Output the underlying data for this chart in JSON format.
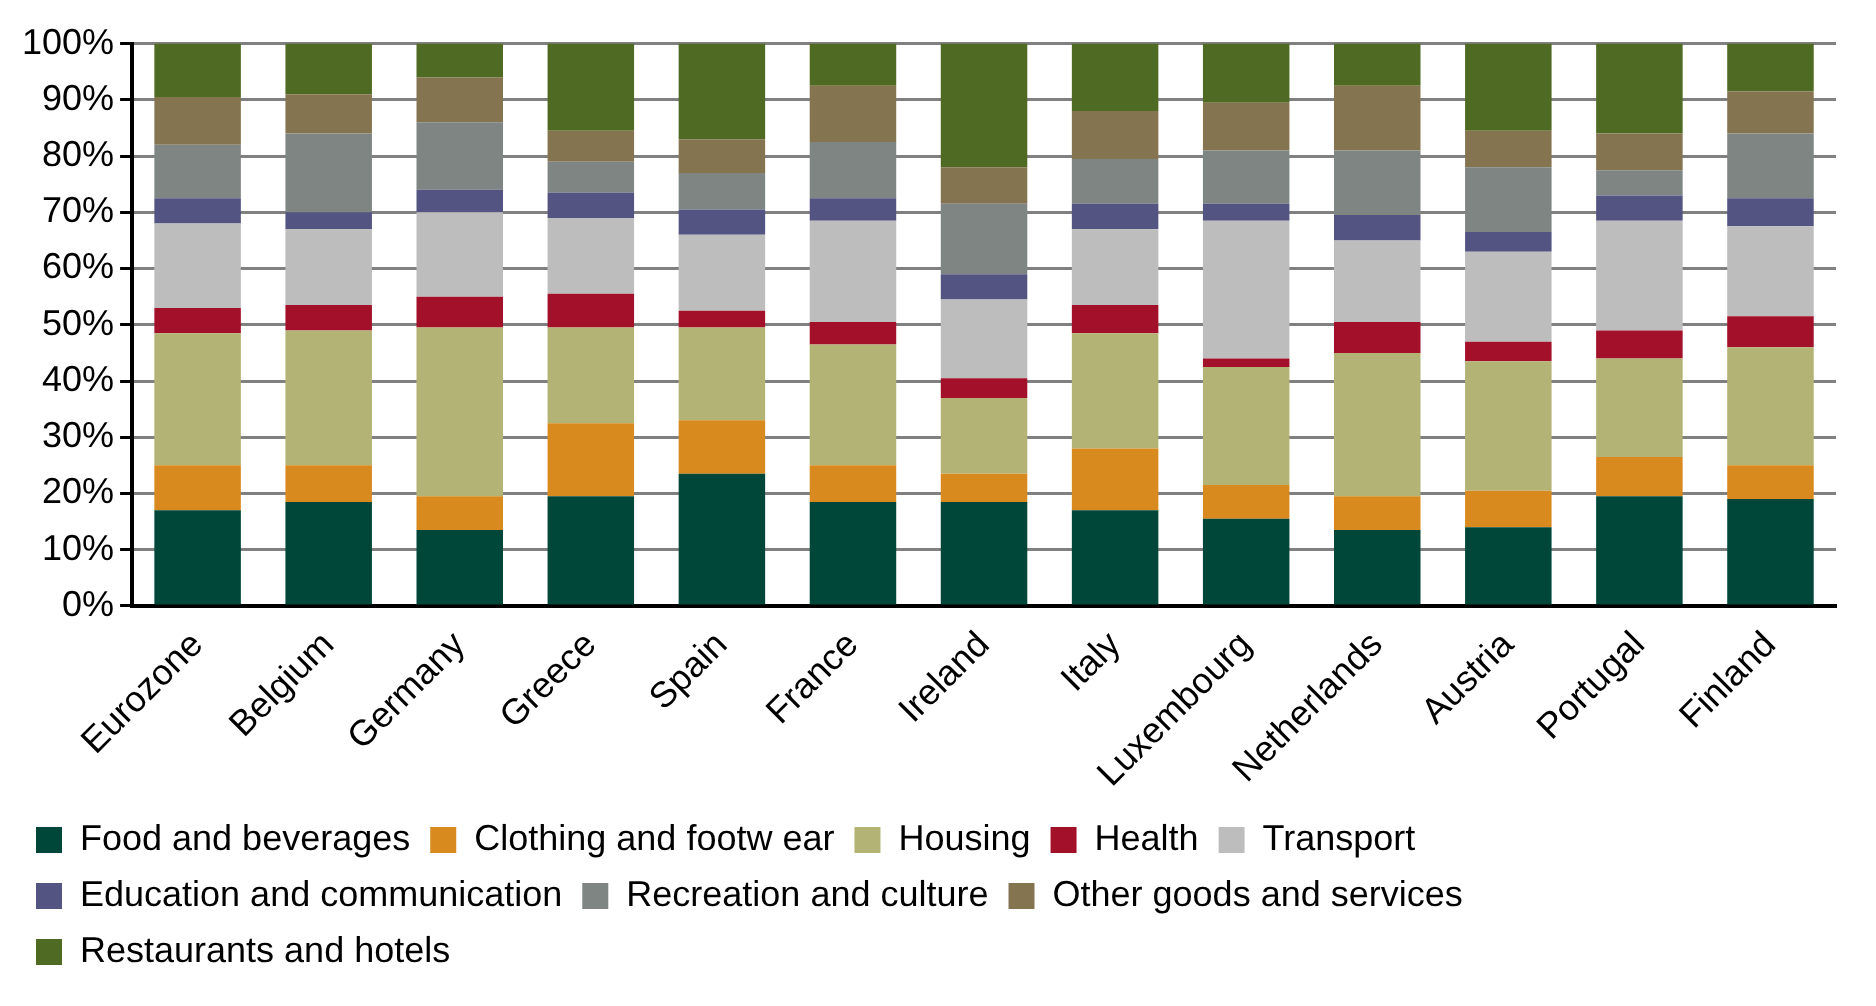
{
  "chart_data": {
    "type": "bar",
    "stacked": true,
    "categories": [
      "Eurozone",
      "Belgium",
      "Germany",
      "Greece",
      "Spain",
      "France",
      "Ireland",
      "Italy",
      "Luxembourg",
      "Netherlands",
      "Austria",
      "Portugal",
      "Finland"
    ],
    "series": [
      {
        "name": "Food and beverages",
        "color": "#00473a",
        "values": [
          17,
          18.5,
          13.5,
          19.5,
          23.5,
          18.5,
          18.5,
          17,
          15.5,
          13.5,
          14,
          19.5,
          19
        ]
      },
      {
        "name": "Clothing and footw ear",
        "color": "#d98a1e",
        "values": [
          8,
          6.5,
          6,
          13,
          9.5,
          6.5,
          5,
          11,
          6,
          6,
          6.5,
          7,
          6
        ]
      },
      {
        "name": "Housing",
        "color": "#b3b375",
        "values": [
          23.5,
          24,
          30,
          17,
          16.5,
          21.5,
          13.5,
          20.5,
          21,
          25.5,
          23,
          17.5,
          21
        ]
      },
      {
        "name": "Health",
        "color": "#a31029",
        "values": [
          4.5,
          4.5,
          5.5,
          6,
          3,
          4,
          3.5,
          5,
          1.5,
          5.5,
          3.5,
          5,
          5.5
        ]
      },
      {
        "name": "Transport",
        "color": "#bdbdbd",
        "values": [
          15,
          13.5,
          15,
          13.5,
          13.5,
          18,
          14,
          13.5,
          24.5,
          14.5,
          16,
          19.5,
          16
        ]
      },
      {
        "name": "Education and communication",
        "color": "#545482",
        "values": [
          4.5,
          3,
          4,
          4.5,
          4.5,
          4,
          4.5,
          4.5,
          3,
          4.5,
          3.5,
          4.5,
          5
        ]
      },
      {
        "name": "Recreation and culture",
        "color": "#7f8582",
        "values": [
          9.5,
          14,
          12,
          5.5,
          6.5,
          10,
          12.5,
          8,
          9.5,
          11.5,
          11.5,
          4.5,
          11.5
        ]
      },
      {
        "name": "Other goods and services",
        "color": "#857450",
        "values": [
          8.5,
          7,
          8,
          5.5,
          6,
          10,
          6.5,
          8.5,
          8.5,
          11.5,
          6.5,
          6.5,
          7.5
        ]
      },
      {
        "name": "Restaurants and hotels",
        "color": "#4f6a22",
        "values": [
          9.5,
          9,
          6,
          15.5,
          17,
          7.5,
          22,
          12,
          10.5,
          7.5,
          15.5,
          16,
          8.5
        ]
      }
    ],
    "ylim": [
      0,
      100
    ],
    "yticks": [
      {
        "value": 0,
        "label": "0%"
      },
      {
        "value": 10,
        "label": "10%"
      },
      {
        "value": 20,
        "label": "20%"
      },
      {
        "value": 30,
        "label": "30%"
      },
      {
        "value": 40,
        "label": "40%"
      },
      {
        "value": 50,
        "label": "50%"
      },
      {
        "value": 60,
        "label": "60%"
      },
      {
        "value": 70,
        "label": "70%"
      },
      {
        "value": 80,
        "label": "80%"
      },
      {
        "value": 90,
        "label": "90%"
      },
      {
        "value": 100,
        "label": "100%"
      }
    ],
    "grid": "y",
    "legend": "bottom"
  }
}
